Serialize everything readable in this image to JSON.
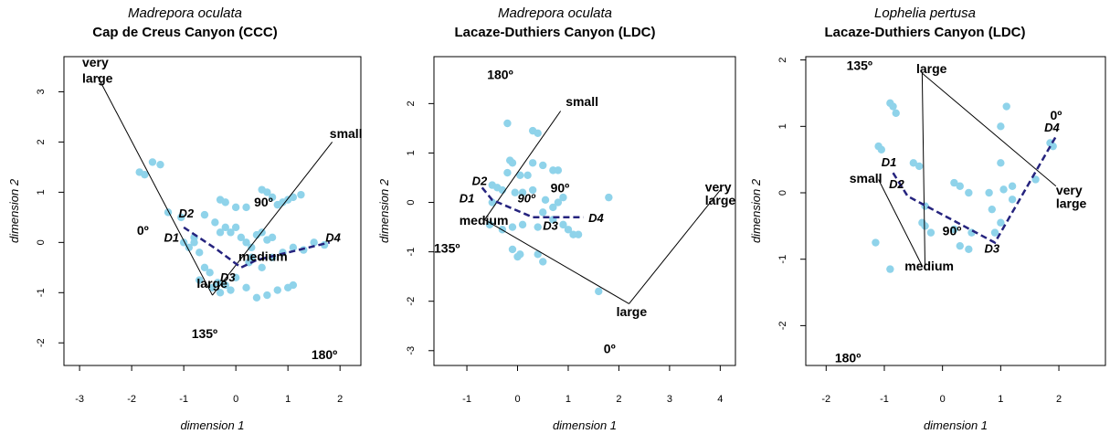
{
  "colors": {
    "points": "#8fd3ea",
    "dashed": "#25237e",
    "lines": "#000000"
  },
  "chart_data": [
    {
      "type": "scatter",
      "title": "Madrepora oculata",
      "subtitle": "Cap de Creus Canyon (CCC)",
      "xlabel": "dimension 1",
      "ylabel": "dimension 2",
      "xlim": [
        -3.3,
        2.4
      ],
      "ylim": [
        -2.45,
        3.7
      ],
      "xticks": [
        -3,
        -2,
        -1,
        0,
        1,
        2
      ],
      "yticks": [
        -2,
        -1,
        0,
        1,
        2,
        3
      ],
      "points": [
        [
          -1.85,
          1.4
        ],
        [
          -1.75,
          1.35
        ],
        [
          -1.6,
          1.6
        ],
        [
          -1.45,
          1.55
        ],
        [
          -1.3,
          0.6
        ],
        [
          -1.05,
          0.5
        ],
        [
          -1.0,
          0.0
        ],
        [
          -0.9,
          -0.1
        ],
        [
          -0.8,
          0.1
        ],
        [
          -0.7,
          -0.2
        ],
        [
          -0.6,
          -0.5
        ],
        [
          -0.5,
          -0.6
        ],
        [
          -0.45,
          -0.9
        ],
        [
          -0.35,
          -0.8
        ],
        [
          -0.3,
          -1.0
        ],
        [
          -0.2,
          -0.85
        ],
        [
          -0.1,
          -0.95
        ],
        [
          0.0,
          -0.7
        ],
        [
          -0.6,
          0.55
        ],
        [
          -0.4,
          0.4
        ],
        [
          -0.3,
          0.2
        ],
        [
          -0.2,
          0.3
        ],
        [
          -0.1,
          0.2
        ],
        [
          0.0,
          0.3
        ],
        [
          0.1,
          0.1
        ],
        [
          0.2,
          0.0
        ],
        [
          0.3,
          -0.1
        ],
        [
          0.4,
          0.15
        ],
        [
          0.5,
          0.2
        ],
        [
          0.6,
          0.05
        ],
        [
          0.7,
          0.1
        ],
        [
          -0.3,
          0.85
        ],
        [
          -0.2,
          0.8
        ],
        [
          0.0,
          0.7
        ],
        [
          0.2,
          0.7
        ],
        [
          0.5,
          1.05
        ],
        [
          0.6,
          1.0
        ],
        [
          0.7,
          0.9
        ],
        [
          0.8,
          0.75
        ],
        [
          0.9,
          0.8
        ],
        [
          1.0,
          0.85
        ],
        [
          1.1,
          0.9
        ],
        [
          1.25,
          0.95
        ],
        [
          0.3,
          -0.3
        ],
        [
          0.5,
          -0.5
        ],
        [
          0.7,
          -0.3
        ],
        [
          0.9,
          -0.2
        ],
        [
          1.1,
          -0.1
        ],
        [
          1.3,
          -0.15
        ],
        [
          1.5,
          0.0
        ],
        [
          1.7,
          -0.05
        ],
        [
          0.4,
          -1.1
        ],
        [
          0.6,
          -1.05
        ],
        [
          0.8,
          -0.95
        ],
        [
          1.0,
          -0.9
        ],
        [
          1.1,
          -0.85
        ],
        [
          0.2,
          -0.9
        ],
        [
          -0.7,
          -0.75
        ],
        [
          -0.8,
          0.0
        ],
        [
          0.25,
          -0.4
        ]
      ],
      "lines": [
        [
          [
            -2.65,
            3.3
          ],
          [
            -0.45,
            -1.05
          ]
        ],
        [
          [
            -0.45,
            -1.05
          ],
          [
            1.85,
            2.0
          ]
        ]
      ],
      "dashed": [
        [
          -1.0,
          0.3
        ],
        [
          -0.35,
          -0.15
        ],
        [
          0.1,
          -0.5
        ],
        [
          0.4,
          -0.35
        ],
        [
          1.8,
          0.0
        ]
      ],
      "labels": [
        {
          "text": "very",
          "x": -2.95,
          "y": 3.5
        },
        {
          "text": "large",
          "x": -2.95,
          "y": 3.18
        },
        {
          "text": "small",
          "x": 1.8,
          "y": 2.08
        },
        {
          "text": "90º",
          "x": 0.35,
          "y": 0.72
        },
        {
          "text": "0º",
          "x": -1.9,
          "y": 0.15
        },
        {
          "text": "medium",
          "x": 0.05,
          "y": -0.37
        },
        {
          "text": "large",
          "x": -0.75,
          "y": -0.9
        },
        {
          "text": "135º",
          "x": -0.85,
          "y": -1.9
        },
        {
          "text": "180º",
          "x": 1.45,
          "y": -2.32
        }
      ],
      "dlabels": [
        {
          "text": "D2",
          "x": -1.1,
          "y": 0.5
        },
        {
          "text": "D1",
          "x": -1.38,
          "y": 0.02
        },
        {
          "text": "D3",
          "x": -0.3,
          "y": -0.78
        },
        {
          "text": "D4",
          "x": 1.72,
          "y": 0.02
        }
      ]
    },
    {
      "type": "scatter",
      "title": "Madrepora oculata",
      "subtitle": "Lacaze-Duthiers Canyon (LDC)",
      "xlabel": "dimension 1",
      "ylabel": "dimension 2",
      "xlim": [
        -1.65,
        4.3
      ],
      "ylim": [
        -3.3,
        2.95
      ],
      "xticks": [
        -1,
        0,
        1,
        2,
        3,
        4
      ],
      "yticks": [
        -3,
        -2,
        -1,
        0,
        1,
        2
      ],
      "points": [
        [
          -0.2,
          1.6
        ],
        [
          0.3,
          1.45
        ],
        [
          0.4,
          1.4
        ],
        [
          -0.15,
          0.85
        ],
        [
          -0.1,
          0.8
        ],
        [
          -0.2,
          0.6
        ],
        [
          0.05,
          0.55
        ],
        [
          0.2,
          0.55
        ],
        [
          0.3,
          0.8
        ],
        [
          0.5,
          0.75
        ],
        [
          0.7,
          0.65
        ],
        [
          0.8,
          0.65
        ],
        [
          -0.5,
          0.35
        ],
        [
          -0.4,
          0.3
        ],
        [
          -0.3,
          0.25
        ],
        [
          -0.05,
          0.2
        ],
        [
          0.1,
          0.2
        ],
        [
          0.3,
          0.25
        ],
        [
          0.55,
          0.05
        ],
        [
          0.7,
          -0.1
        ],
        [
          0.8,
          0.0
        ],
        [
          0.5,
          -0.2
        ],
        [
          0.7,
          -0.35
        ],
        [
          0.9,
          -0.45
        ],
        [
          1.0,
          -0.55
        ],
        [
          1.1,
          -0.65
        ],
        [
          1.2,
          -0.65
        ],
        [
          0.4,
          -0.5
        ],
        [
          0.1,
          -0.45
        ],
        [
          -0.1,
          -0.5
        ],
        [
          -0.3,
          -0.55
        ],
        [
          -0.55,
          -0.45
        ],
        [
          -0.1,
          -0.95
        ],
        [
          0.0,
          -1.1
        ],
        [
          0.05,
          -1.05
        ],
        [
          0.4,
          -1.05
        ],
        [
          0.5,
          -1.2
        ],
        [
          1.6,
          -1.8
        ],
        [
          0.9,
          0.1
        ],
        [
          1.8,
          0.1
        ],
        [
          -0.5,
          0.0
        ]
      ],
      "lines": [
        [
          [
            0.85,
            1.85
          ],
          [
            -0.65,
            -0.35
          ]
        ],
        [
          [
            -0.65,
            -0.35
          ],
          [
            2.2,
            -2.05
          ]
        ],
        [
          [
            2.2,
            -2.05
          ],
          [
            4.0,
            0.25
          ]
        ]
      ],
      "dashed": [
        [
          -0.7,
          0.3
        ],
        [
          -0.5,
          0.05
        ],
        [
          0.3,
          -0.3
        ],
        [
          1.3,
          -0.3
        ]
      ],
      "labels": [
        {
          "text": "180º",
          "x": -0.6,
          "y": 2.5
        },
        {
          "text": "small",
          "x": 0.95,
          "y": 1.95
        },
        {
          "text": "90º",
          "x": 0.65,
          "y": 0.2
        },
        {
          "text": "very",
          "x": 3.7,
          "y": 0.22
        },
        {
          "text": "large",
          "x": 3.7,
          "y": -0.05
        },
        {
          "text": "medium",
          "x": -1.15,
          "y": -0.45
        },
        {
          "text": "135º",
          "x": -1.65,
          "y": -1.02
        },
        {
          "text": "large",
          "x": 1.95,
          "y": -2.3
        },
        {
          "text": "0º",
          "x": 1.7,
          "y": -3.05
        }
      ],
      "dlabels": [
        {
          "text": "D2",
          "x": -0.9,
          "y": 0.35
        },
        {
          "text": "D1",
          "x": -1.15,
          "y": 0.0
        },
        {
          "text": "90º",
          "x": 0.0,
          "y": 0.0
        },
        {
          "text": "D3",
          "x": 0.5,
          "y": -0.55
        },
        {
          "text": "D4",
          "x": 1.4,
          "y": -0.4
        }
      ]
    },
    {
      "type": "scatter",
      "title": "Lophelia pertusa",
      "subtitle": "Lacaze-Duthiers Canyon (LDC)",
      "xlabel": "dimension 1",
      "ylabel": "dimension 2",
      "xlim": [
        -2.35,
        2.8
      ],
      "ylim": [
        -2.6,
        2.05
      ],
      "xticks": [
        -2,
        -1,
        0,
        1,
        2
      ],
      "yticks": [
        -2,
        -1,
        0,
        1,
        2
      ],
      "points": [
        [
          -0.9,
          1.35
        ],
        [
          -0.85,
          1.3
        ],
        [
          -0.8,
          1.2
        ],
        [
          -1.1,
          0.7
        ],
        [
          -1.05,
          0.65
        ],
        [
          -0.5,
          0.45
        ],
        [
          -0.4,
          0.4
        ],
        [
          0.2,
          0.15
        ],
        [
          0.3,
          0.1
        ],
        [
          0.45,
          0.0
        ],
        [
          0.8,
          0.0
        ],
        [
          1.05,
          0.05
        ],
        [
          1.2,
          0.1
        ],
        [
          1.0,
          0.45
        ],
        [
          1.1,
          1.3
        ],
        [
          1.0,
          1.0
        ],
        [
          1.85,
          0.75
        ],
        [
          1.9,
          0.7
        ],
        [
          1.6,
          0.2
        ],
        [
          -0.35,
          -0.45
        ],
        [
          -0.3,
          -0.5
        ],
        [
          -0.2,
          -0.6
        ],
        [
          0.2,
          -0.55
        ],
        [
          0.3,
          -0.8
        ],
        [
          0.45,
          -0.85
        ],
        [
          0.5,
          -0.6
        ],
        [
          0.85,
          -0.25
        ],
        [
          1.0,
          -0.45
        ],
        [
          0.9,
          -0.6
        ],
        [
          -0.9,
          -1.15
        ],
        [
          -1.15,
          -0.75
        ],
        [
          -0.3,
          -0.2
        ],
        [
          1.2,
          -0.1
        ]
      ],
      "lines": [
        [
          [
            -0.35,
            1.8
          ],
          [
            -0.3,
            -1.15
          ]
        ],
        [
          [
            -0.35,
            1.8
          ],
          [
            1.95,
            0.1
          ]
        ],
        [
          [
            -1.1,
            0.2
          ],
          [
            -0.35,
            -1.1
          ]
        ]
      ],
      "dashed": [
        [
          -0.85,
          0.3
        ],
        [
          -0.6,
          -0.05
        ],
        [
          0.9,
          -0.75
        ],
        [
          1.95,
          0.85
        ]
      ],
      "labels": [
        {
          "text": "135º",
          "x": -1.65,
          "y": 1.85
        },
        {
          "text": "large",
          "x": -0.45,
          "y": 1.8
        },
        {
          "text": "0º",
          "x": 1.85,
          "y": 1.1
        },
        {
          "text": "small",
          "x": -1.6,
          "y": 0.15
        },
        {
          "text": "very",
          "x": 1.95,
          "y": -0.03
        },
        {
          "text": "large",
          "x": 1.95,
          "y": -0.23
        },
        {
          "text": "90º",
          "x": 0.0,
          "y": -0.64
        },
        {
          "text": "medium",
          "x": -0.65,
          "y": -1.17
        },
        {
          "text": "180º",
          "x": -1.85,
          "y": -2.55
        }
      ],
      "dlabels": [
        {
          "text": "D1",
          "x": -1.05,
          "y": 0.4
        },
        {
          "text": "D2",
          "x": -0.92,
          "y": 0.07
        },
        {
          "text": "D4",
          "x": 1.75,
          "y": 0.92
        },
        {
          "text": "D3",
          "x": 0.72,
          "y": -0.9
        }
      ]
    }
  ]
}
